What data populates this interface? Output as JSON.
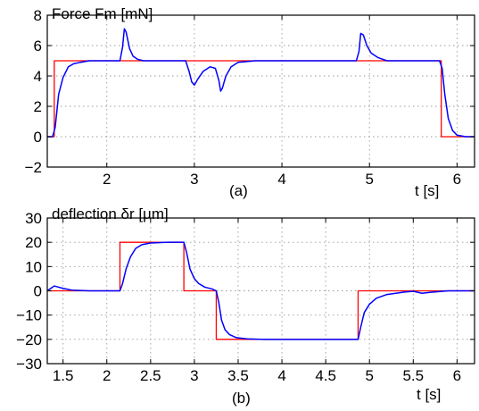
{
  "chart_data": [
    {
      "type": "line",
      "title": "Force Fm [mN]",
      "xlabel": "t [s]",
      "ylabel": "",
      "caption": "(a)",
      "xlim": [
        1.32,
        6.2
      ],
      "ylim": [
        -2,
        8
      ],
      "xticks": [
        2,
        3,
        4,
        5,
        6
      ],
      "xtick_labels": [
        "2",
        "3",
        "4",
        "5",
        "6"
      ],
      "yticks": [
        -2,
        0,
        2,
        4,
        6,
        8
      ],
      "ytick_labels": [
        "−2",
        "0",
        "2",
        "4",
        "6",
        "8"
      ],
      "grid": true,
      "colors": {
        "reference": "#ff0000",
        "measured": "#0000ff"
      },
      "series": [
        {
          "x": [
            1.32,
            1.4,
            1.4,
            5.82,
            5.82,
            6.2
          ],
          "values": [
            0,
            0,
            5,
            5,
            0,
            0
          ]
        },
        {
          "x": [
            1.32,
            1.38,
            1.41,
            1.45,
            1.5,
            1.56,
            1.62,
            1.7,
            1.8,
            2.0,
            2.15,
            2.18,
            2.2,
            2.22,
            2.26,
            2.3,
            2.35,
            2.42,
            2.6,
            2.9,
            2.94,
            2.97,
            3.0,
            3.04,
            3.1,
            3.18,
            3.24,
            3.28,
            3.3,
            3.32,
            3.36,
            3.42,
            3.5,
            3.7,
            4.0,
            4.5,
            4.85,
            4.88,
            4.9,
            4.93,
            4.97,
            5.02,
            5.1,
            5.2,
            5.4,
            5.6,
            5.8,
            5.83,
            5.86,
            5.9,
            5.95,
            6.0,
            6.1,
            6.2
          ],
          "values": [
            0,
            0,
            0.6,
            2.8,
            3.9,
            4.6,
            4.8,
            4.9,
            5.0,
            5.0,
            5.0,
            5.9,
            7.1,
            6.9,
            5.8,
            5.3,
            5.1,
            5.0,
            5.0,
            5.0,
            4.3,
            3.6,
            3.4,
            3.8,
            4.3,
            4.6,
            4.5,
            3.7,
            3.0,
            3.2,
            4.0,
            4.6,
            4.9,
            5.0,
            5.0,
            5.0,
            5.0,
            5.6,
            6.8,
            6.7,
            6.0,
            5.5,
            5.2,
            5.0,
            5.0,
            5.0,
            5.0,
            4.5,
            2.8,
            1.2,
            0.4,
            0.1,
            0.0,
            0.0
          ]
        }
      ]
    },
    {
      "type": "line",
      "title": "deflection δr [µm]",
      "xlabel": "t [s]",
      "ylabel": "",
      "caption": "(b)",
      "xlim": [
        1.32,
        6.2
      ],
      "ylim": [
        -30,
        30
      ],
      "xticks": [
        1.5,
        2,
        2.5,
        3,
        3.5,
        4,
        4.5,
        5,
        5.5,
        6
      ],
      "xtick_labels": [
        "1.5",
        "2",
        "2.5",
        "3",
        "3.5",
        "4",
        "4.5",
        "5",
        "5.5",
        "6"
      ],
      "yticks": [
        -30,
        -20,
        -10,
        0,
        10,
        20,
        30
      ],
      "ytick_labels": [
        "−30",
        "−20",
        "−10",
        "0",
        "10",
        "20",
        "30"
      ],
      "grid": true,
      "colors": {
        "reference": "#ff0000",
        "measured": "#0000ff"
      },
      "series": [
        {
          "x": [
            1.32,
            2.15,
            2.15,
            2.88,
            2.88,
            3.25,
            3.25,
            4.87,
            4.87,
            6.2
          ],
          "values": [
            0,
            0,
            20,
            20,
            0,
            0,
            -20,
            -20,
            0,
            0
          ]
        },
        {
          "x": [
            1.32,
            1.36,
            1.4,
            1.45,
            1.5,
            1.6,
            1.8,
            2.0,
            2.15,
            2.18,
            2.22,
            2.27,
            2.33,
            2.4,
            2.5,
            2.7,
            2.88,
            2.91,
            2.95,
            3.0,
            3.05,
            3.12,
            3.2,
            3.25,
            3.28,
            3.31,
            3.35,
            3.4,
            3.48,
            3.6,
            3.8,
            4.2,
            4.6,
            4.87,
            4.9,
            4.94,
            5.0,
            5.08,
            5.2,
            5.4,
            5.5,
            5.6,
            5.7,
            5.9,
            6.2
          ],
          "values": [
            0,
            1,
            2,
            1.5,
            1,
            0.3,
            0,
            0,
            0,
            3,
            9,
            14,
            17.5,
            19,
            19.7,
            20,
            20,
            16,
            9,
            5,
            3,
            1.5,
            0.8,
            0,
            -5,
            -12,
            -16,
            -18,
            -19.3,
            -19.8,
            -20,
            -20,
            -20,
            -20,
            -15,
            -9,
            -5.5,
            -3,
            -1.5,
            -0.5,
            -0.2,
            -1,
            -0.6,
            0,
            0
          ]
        }
      ]
    }
  ]
}
